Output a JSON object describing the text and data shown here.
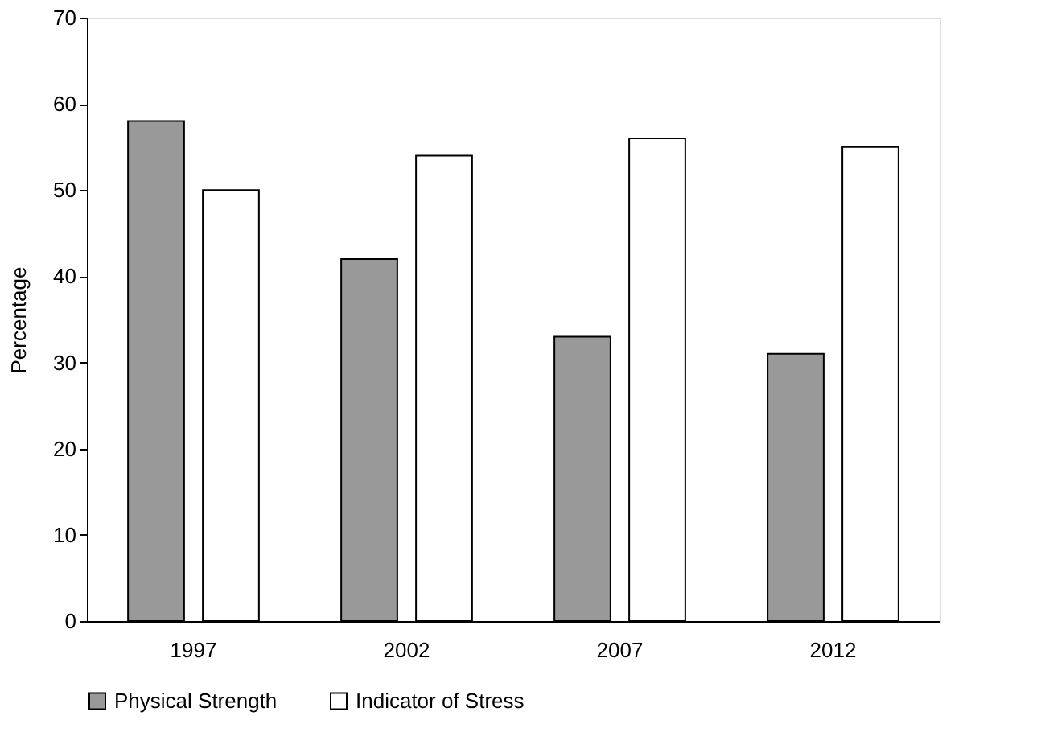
{
  "chart_data": {
    "type": "bar",
    "ylabel": "Percentage",
    "categories": [
      "1997",
      "2002",
      "2007",
      "2012"
    ],
    "series": [
      {
        "name": "Physical Strength",
        "color": "#999999",
        "values": [
          58,
          42,
          33,
          31
        ]
      },
      {
        "name": "Indicator of Stress",
        "color": "#ffffff",
        "values": [
          50,
          54,
          56,
          55
        ]
      }
    ],
    "ylim": [
      0,
      70
    ],
    "yticks": [
      0,
      10,
      20,
      30,
      40,
      50,
      60,
      70
    ],
    "grid": false,
    "legend": "bottom"
  }
}
